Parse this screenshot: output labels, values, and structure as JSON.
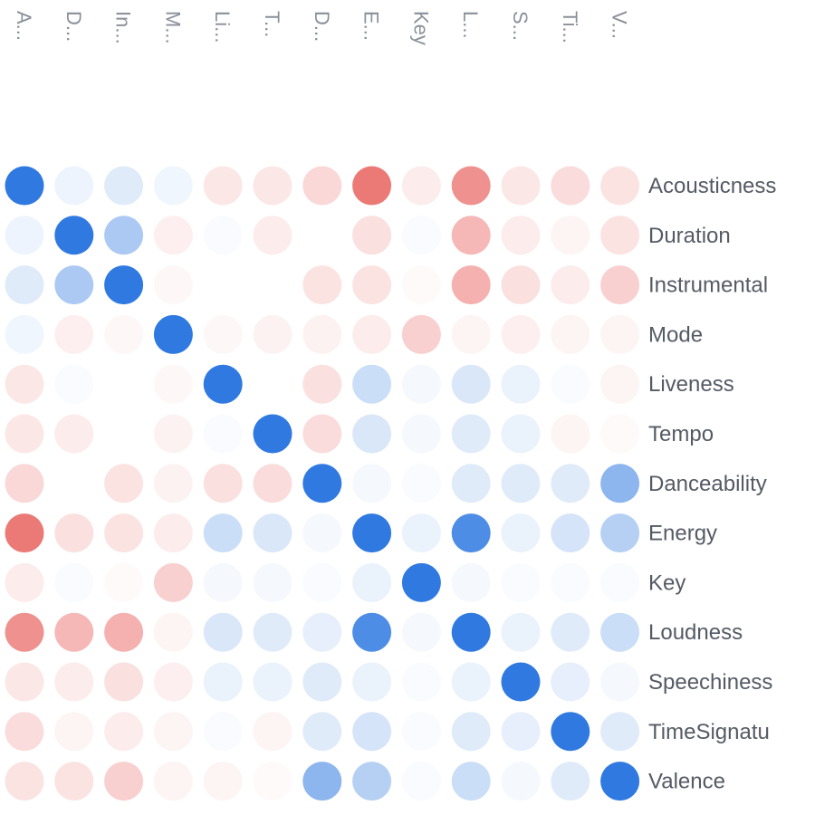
{
  "chart_data": {
    "type": "heatmap",
    "mark": "circle",
    "columns": [
      "A...",
      "D...",
      "In...",
      "M...",
      "Li...",
      "T...",
      "D...",
      "E...",
      "Key",
      "L...",
      "S...",
      "Ti...",
      "V..."
    ],
    "rows": [
      "Acousticness",
      "Duration",
      "Instrumental",
      "Mode",
      "Liveness",
      "Tempo",
      "Danceability",
      "Energy",
      "Key",
      "Loudness",
      "Speechiness",
      "TimeSignatu",
      "Valence"
    ],
    "value_range": [
      -1,
      1
    ],
    "colors": {
      "negative": "#e8625e",
      "neutral": "#ffffff",
      "positive": "#2f79e0"
    },
    "values": [
      [
        1.0,
        0.08,
        0.15,
        0.07,
        -0.15,
        -0.15,
        -0.25,
        -0.85,
        -0.12,
        -0.7,
        -0.15,
        -0.22,
        -0.18
      ],
      [
        0.08,
        1.0,
        0.4,
        -0.1,
        0.03,
        -0.12,
        0.0,
        -0.2,
        0.03,
        -0.45,
        -0.12,
        -0.07,
        -0.18
      ],
      [
        0.15,
        0.4,
        1.0,
        -0.05,
        0.0,
        0.0,
        -0.18,
        -0.18,
        -0.03,
        -0.5,
        -0.2,
        -0.12,
        -0.3
      ],
      [
        0.07,
        -0.1,
        -0.05,
        1.0,
        -0.05,
        -0.08,
        -0.08,
        -0.12,
        -0.3,
        -0.07,
        -0.1,
        -0.07,
        -0.07
      ],
      [
        -0.15,
        0.03,
        0.0,
        -0.05,
        1.0,
        0.0,
        -0.2,
        0.25,
        0.05,
        0.18,
        0.1,
        0.03,
        -0.07
      ],
      [
        -0.15,
        -0.12,
        0.0,
        -0.08,
        0.03,
        1.0,
        -0.22,
        0.18,
        0.05,
        0.15,
        0.1,
        -0.07,
        -0.03
      ],
      [
        -0.25,
        0.0,
        -0.18,
        -0.08,
        -0.2,
        -0.22,
        1.0,
        0.05,
        0.03,
        0.15,
        0.15,
        0.15,
        0.55
      ],
      [
        -0.85,
        -0.2,
        -0.18,
        -0.12,
        0.25,
        0.18,
        0.05,
        1.0,
        0.1,
        0.85,
        0.1,
        0.2,
        0.35
      ],
      [
        -0.12,
        0.03,
        -0.03,
        -0.3,
        0.05,
        0.05,
        0.03,
        0.1,
        1.0,
        0.05,
        0.03,
        0.03,
        0.03
      ],
      [
        -0.7,
        -0.45,
        -0.5,
        -0.07,
        0.18,
        0.15,
        0.12,
        0.85,
        0.05,
        1.0,
        0.1,
        0.15,
        0.25
      ],
      [
        -0.15,
        -0.12,
        -0.2,
        -0.1,
        0.1,
        0.1,
        0.15,
        0.1,
        0.03,
        0.1,
        1.0,
        0.12,
        0.05
      ],
      [
        -0.22,
        -0.07,
        -0.12,
        -0.07,
        0.03,
        -0.07,
        0.15,
        0.2,
        0.03,
        0.15,
        0.12,
        1.0,
        0.15
      ],
      [
        -0.18,
        -0.18,
        -0.3,
        -0.07,
        -0.07,
        -0.03,
        0.55,
        0.35,
        0.03,
        0.25,
        0.05,
        0.15,
        1.0
      ]
    ]
  }
}
